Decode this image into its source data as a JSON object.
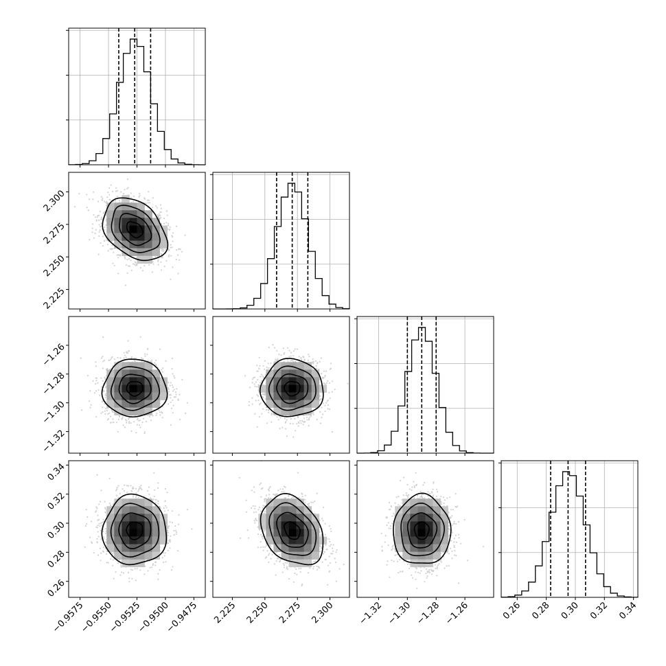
{
  "chart_data": {
    "type": "corner",
    "grid": true,
    "parameters": [
      {
        "range": [
          -0.9585,
          -0.9465
        ],
        "ticks": [
          -0.9575,
          -0.955,
          -0.9525,
          -0.95,
          -0.9475
        ],
        "tick_labels": [
          "−0.9575",
          "−0.9550",
          "−0.9525",
          "−0.9500",
          "−0.9475"
        ],
        "mean": -0.9527,
        "std": 0.0014,
        "quantiles": [
          -0.9541,
          -0.9527,
          -0.9513
        ]
      },
      {
        "range": [
          2.21,
          2.315
        ],
        "ticks": [
          2.225,
          2.25,
          2.275,
          2.3
        ],
        "tick_labels": [
          "2.225",
          "2.250",
          "2.275",
          "2.300"
        ],
        "mean": 2.271,
        "std": 0.012,
        "quantiles": [
          2.259,
          2.271,
          2.283
        ]
      },
      {
        "range": [
          -1.335,
          -1.24
        ],
        "ticks": [
          -1.32,
          -1.3,
          -1.28,
          -1.26
        ],
        "tick_labels": [
          "−1.32",
          "−1.30",
          "−1.28",
          "−1.26"
        ],
        "mean": -1.29,
        "std": 0.01,
        "quantiles": [
          -1.3,
          -1.29,
          -1.28
        ]
      },
      {
        "range": [
          0.249,
          0.343
        ],
        "ticks": [
          0.26,
          0.28,
          0.3,
          0.32,
          0.34
        ],
        "tick_labels": [
          "0.26",
          "0.28",
          "0.30",
          "0.32",
          "0.34"
        ],
        "mean": 0.295,
        "std": 0.012,
        "quantiles": [
          0.283,
          0.295,
          0.307
        ]
      }
    ],
    "correlations": [
      [
        1,
        -0.35,
        0.0,
        0.0
      ],
      [
        -0.35,
        1,
        0.0,
        -0.3
      ],
      [
        0.0,
        0.0,
        1,
        0.0
      ],
      [
        0.0,
        -0.3,
        0.0,
        1
      ]
    ],
    "histogram_bins": 20,
    "contour_levels": [
      0.118,
      0.393,
      0.675,
      0.865
    ],
    "hist_y_ticks": 3
  }
}
